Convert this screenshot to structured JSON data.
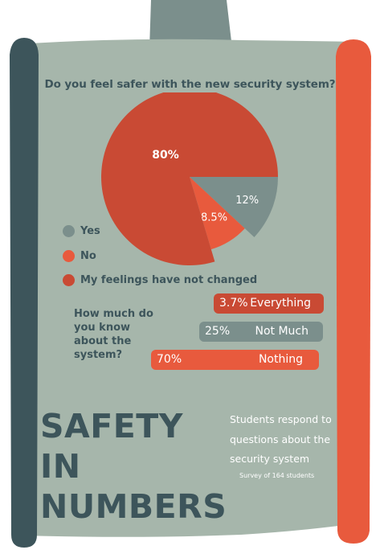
{
  "colors": {
    "background": "#a6b6ab",
    "dark_bar": "#3d555b",
    "orange_bar": "#e85a3d",
    "text_dark": "#3d555b",
    "pie_yes": "#7b8f8c",
    "pie_no": "#e85a3d",
    "pie_unchanged": "#c94a34"
  },
  "question": "Do you feel safer with the new security system?",
  "legend": [
    {
      "label": "Yes",
      "color": "#7b8f8c"
    },
    {
      "label": "No",
      "color": "#e85a3d"
    },
    {
      "label": "My feelings have not changed",
      "color": "#c94a34"
    }
  ],
  "knowledge": {
    "question": "How much do you know about the system?",
    "bars": [
      {
        "pct": "3.7%",
        "label": "Everything",
        "color": "#c94a34"
      },
      {
        "pct": "25%",
        "label": "Not Much",
        "color": "#7b8f8c"
      },
      {
        "pct": "70%",
        "label": "Nothing",
        "color": "#e85a3d"
      }
    ]
  },
  "headline": "SAFETY IN NUMBERS",
  "subtitle": "Students respond to questions about the security system",
  "survey_note": "Survey of 164 students",
  "chart_data": [
    {
      "type": "pie",
      "title": "Do you feel safer with the new security system?",
      "categories": [
        "Yes",
        "No",
        "My feelings have not changed"
      ],
      "values": [
        12,
        8.5,
        80
      ],
      "labels": [
        "12%",
        "8.5%",
        "80%"
      ]
    },
    {
      "type": "bar",
      "title": "How much do you know about the system?",
      "categories": [
        "Everything",
        "Not Much",
        "Nothing"
      ],
      "values": [
        3.7,
        25,
        70
      ],
      "labels": [
        "3.7%",
        "25%",
        "70%"
      ]
    }
  ]
}
